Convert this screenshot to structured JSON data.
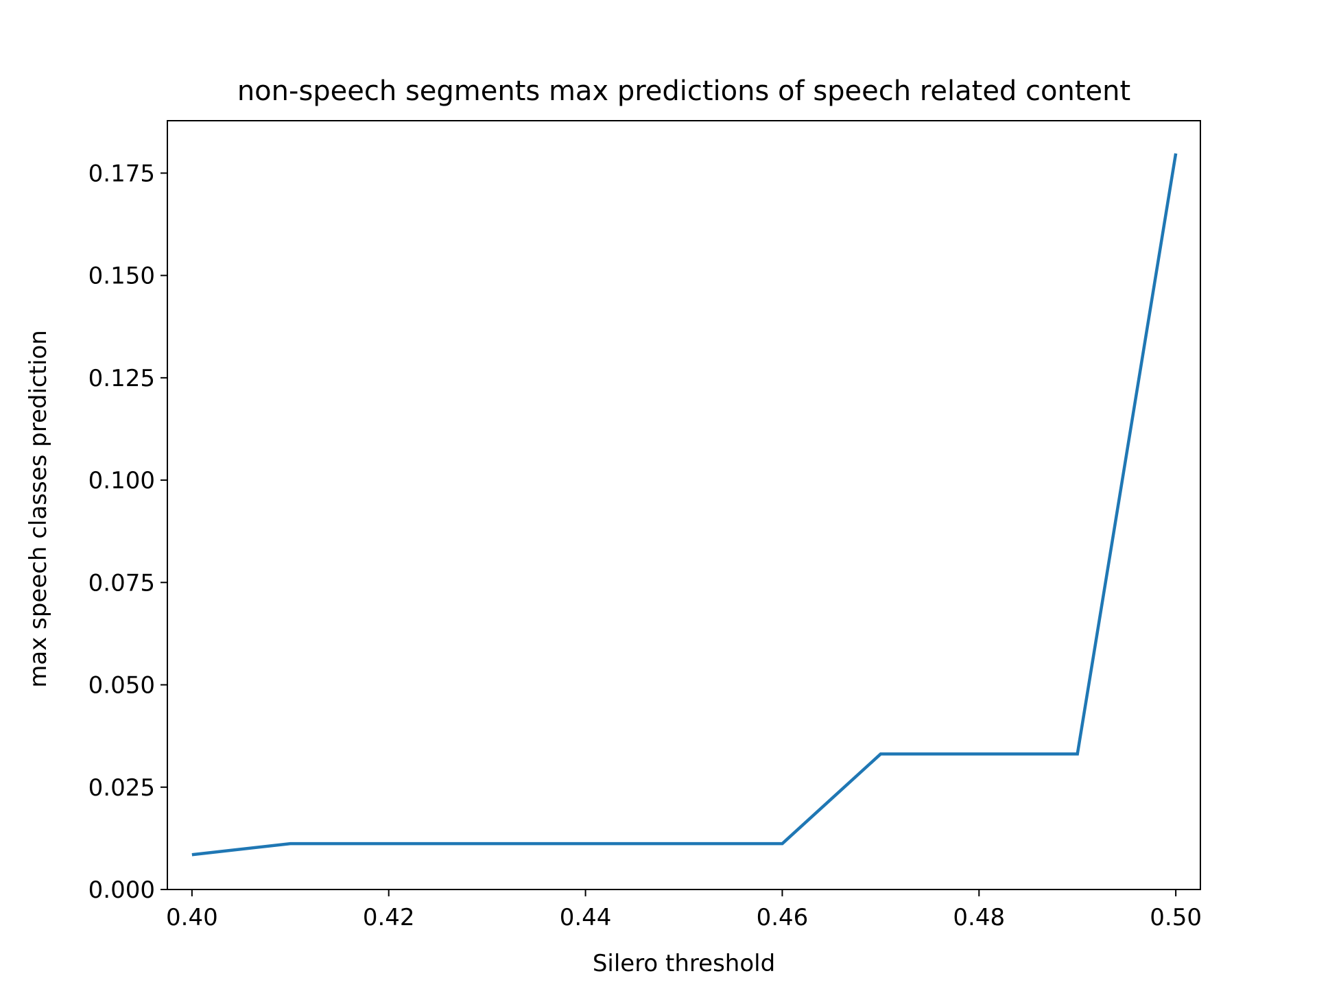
{
  "chart_data": {
    "type": "line",
    "title": "non-speech segments max predictions of speech related content",
    "xlabel": "Silero threshold",
    "ylabel": "max speech classes prediction",
    "xlim": [
      0.3975,
      0.5025
    ],
    "ylim": [
      0.0,
      0.1878
    ],
    "x_ticks": [
      0.4,
      0.42,
      0.44,
      0.46,
      0.48,
      0.5
    ],
    "x_tick_labels": [
      "0.40",
      "0.42",
      "0.44",
      "0.46",
      "0.48",
      "0.50"
    ],
    "y_ticks": [
      0.0,
      0.025,
      0.05,
      0.075,
      0.1,
      0.125,
      0.15,
      0.175
    ],
    "y_tick_labels": [
      "0.000",
      "0.025",
      "0.050",
      "0.075",
      "0.100",
      "0.125",
      "0.150",
      "0.175"
    ],
    "grid": false,
    "legend": "none",
    "series": [
      {
        "color": "#1f77b4",
        "x": [
          0.4,
          0.41,
          0.42,
          0.43,
          0.44,
          0.45,
          0.46,
          0.47,
          0.48,
          0.49,
          0.5
        ],
        "y": [
          0.0085,
          0.0112,
          0.0112,
          0.0112,
          0.0112,
          0.0112,
          0.0112,
          0.0331,
          0.0331,
          0.0331,
          0.1798
        ]
      }
    ]
  }
}
